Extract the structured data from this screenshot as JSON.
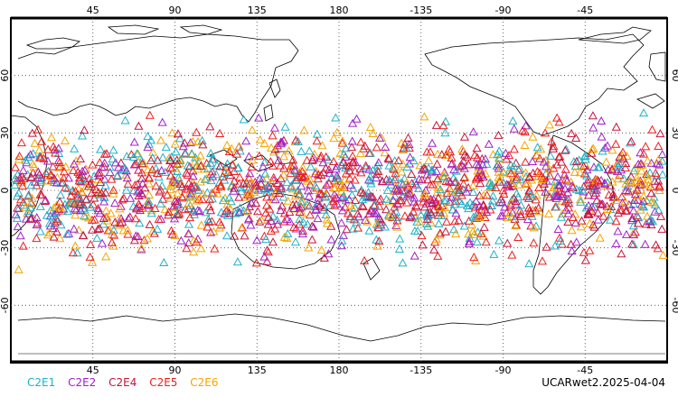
{
  "map": {
    "projection": "cylindrical equidistant, centered on 180",
    "lon_range": [
      0,
      360
    ],
    "lat_range": [
      -90,
      90
    ],
    "top_lon_ticks": [
      "45",
      "90",
      "135",
      "180",
      "-135",
      "-90",
      "-45"
    ],
    "bottom_lon_ticks": [
      "45",
      "90",
      "135",
      "180",
      "-135",
      "-90",
      "-45"
    ],
    "lat_ticks": [
      "60",
      "30",
      "0",
      "-30",
      "-60"
    ],
    "grid": "dotted",
    "observation_marker": "open-triangle",
    "observation_lat_band": [
      -45,
      45
    ]
  },
  "legend": {
    "items": [
      {
        "label": "C2E1",
        "color": "#1fb2c8"
      },
      {
        "label": "C2E2",
        "color": "#a020c8"
      },
      {
        "label": "C2E4",
        "color": "#c8143c"
      },
      {
        "label": "C2E5",
        "color": "#f01e1e"
      },
      {
        "label": "C2E6",
        "color": "#f5a500"
      }
    ]
  },
  "stamp": "UCARwet2.2025-04-04"
}
